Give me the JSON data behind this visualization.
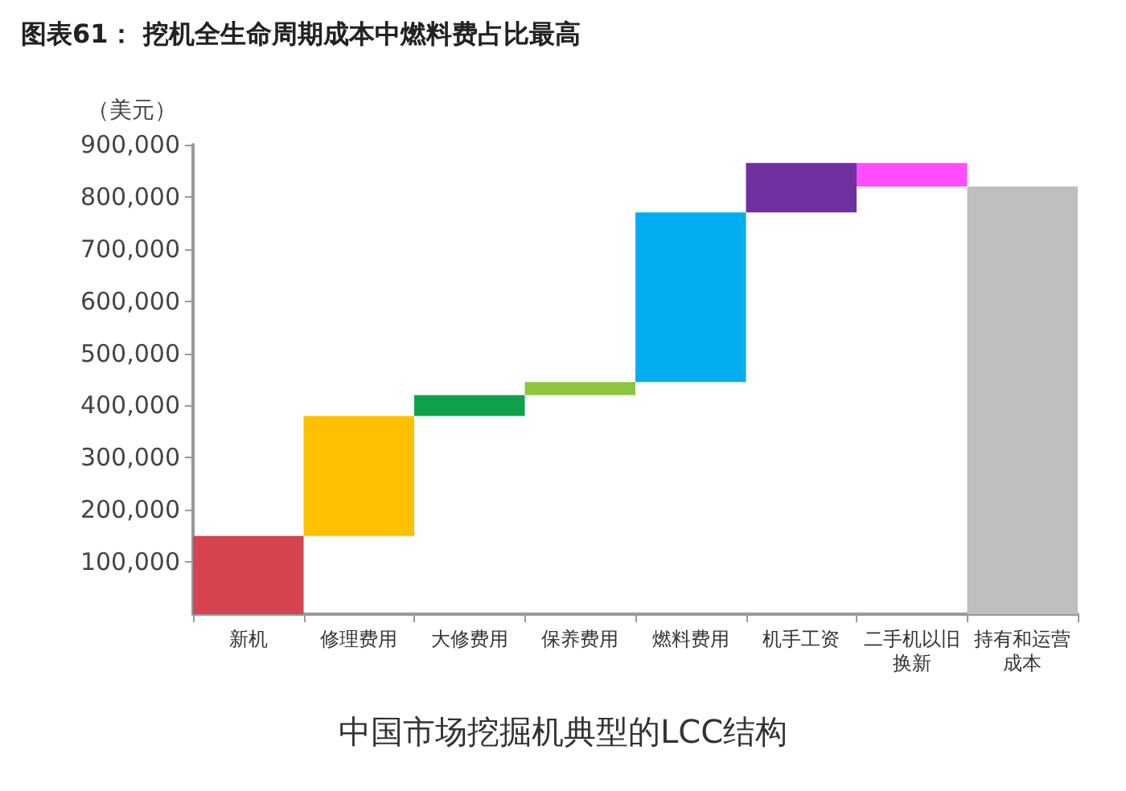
{
  "chart_data": {
    "type": "bar",
    "title": "图表61： 挖机全生命周期成本中燃料费占比最高",
    "subtitle": "中国市场挖掘机典型的LCC结构",
    "ylabel": "（美元）",
    "categories": [
      "新机",
      "修理费用",
      "大修费用",
      "保养费用",
      "燃料费用",
      "机手工资",
      "二手机以旧换新",
      "持有和运营成本"
    ],
    "values": [
      150000,
      230000,
      40000,
      25000,
      325000,
      95000,
      -45000,
      820000
    ],
    "base": [
      0,
      150000,
      380000,
      420000,
      445000,
      770000,
      865000,
      0
    ],
    "colors": [
      "#d5444f",
      "#ffc000",
      "#11a14a",
      "#8cc63f",
      "#00aeef",
      "#7030a0",
      "#ff4dff",
      "#bfbfbf"
    ],
    "ylim": [
      0,
      900000
    ],
    "yticks": [
      {
        "value": 100000,
        "label": "100,000"
      },
      {
        "value": 200000,
        "label": "200,000"
      },
      {
        "value": 300000,
        "label": "300,000"
      },
      {
        "value": 400000,
        "label": "400,000"
      },
      {
        "value": 500000,
        "label": "500,000"
      },
      {
        "value": 600000,
        "label": "600,000"
      },
      {
        "value": 700000,
        "label": "700,000"
      },
      {
        "value": 800000,
        "label": "800,000"
      },
      {
        "value": 900000,
        "label": "900,000"
      }
    ],
    "grid": false
  }
}
